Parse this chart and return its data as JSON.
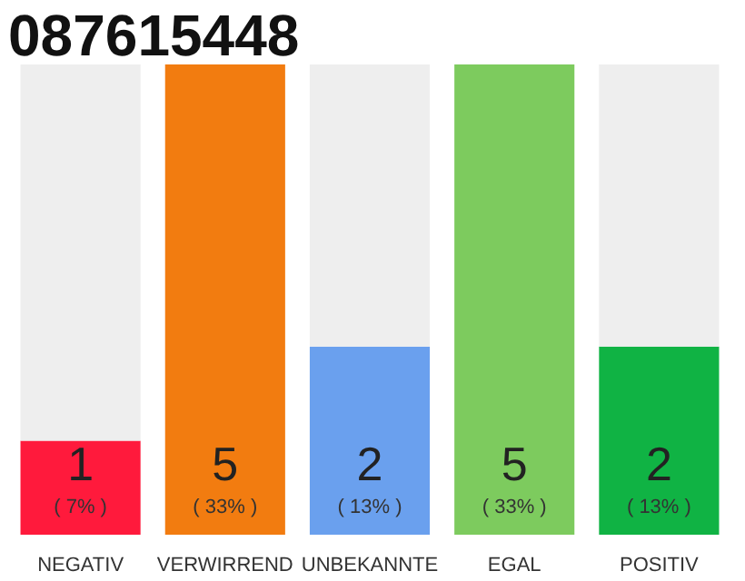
{
  "chart_data": {
    "type": "bar",
    "title": "087615448",
    "stacked": true,
    "categories": [
      "NEGATIV",
      "VERWIRREND",
      "UNBEKANNTE",
      "EGAL",
      "POSITIV"
    ],
    "series": [
      {
        "colors": [
          "#ff1a3c",
          "#f27c10",
          "#6aa0ee",
          "#7dcb5e",
          "#10b344"
        ],
        "values": [
          1,
          5,
          2,
          5,
          2
        ],
        "value_labels": [
          "1\n( 7% )",
          "5\n( 33% )",
          "2\n( 13% )",
          "5\n( 33% )",
          "2\n( 13% )"
        ]
      },
      {
        "color": "#eeeeee",
        "values": [
          4,
          0,
          3,
          0,
          3
        ]
      }
    ],
    "grid": false
  }
}
